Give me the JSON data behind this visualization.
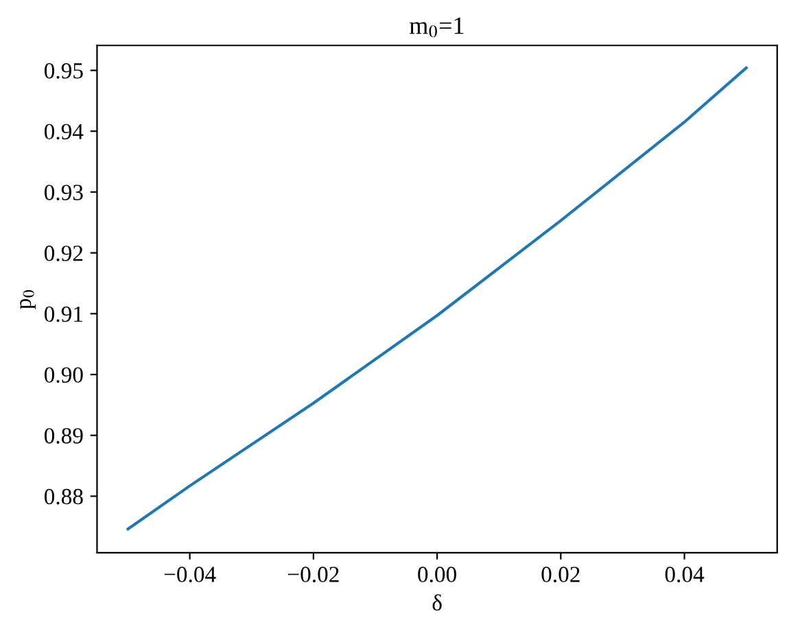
{
  "chart_data": {
    "type": "line",
    "title": "m$_{0}$=1",
    "xlabel": "δ",
    "ylabel": "p$_{0}$",
    "x": [
      -0.05,
      -0.04,
      -0.02,
      0.0,
      0.02,
      0.04,
      0.05
    ],
    "series": [
      {
        "color": "#1f77b4",
        "values": [
          0.8746,
          0.8817,
          0.8953,
          0.9097,
          0.9253,
          0.9415,
          0.9504
        ]
      }
    ],
    "xlim": [
      -0.055,
      0.055
    ],
    "ylim": [
      0.8707,
      0.9541
    ],
    "xticks": [
      {
        "value": -0.04,
        "label": "−0.04"
      },
      {
        "value": -0.02,
        "label": "−0.02"
      },
      {
        "value": 0.0,
        "label": "0.00"
      },
      {
        "value": 0.02,
        "label": "0.02"
      },
      {
        "value": 0.04,
        "label": "0.04"
      }
    ],
    "yticks": [
      0.88,
      0.89,
      {
        "value": 0.9,
        "label": "0.90"
      },
      0.91,
      0.92,
      0.93,
      0.94,
      0.95
    ],
    "grid": false,
    "legend": false,
    "marker": "none",
    "line_style": "solid"
  }
}
